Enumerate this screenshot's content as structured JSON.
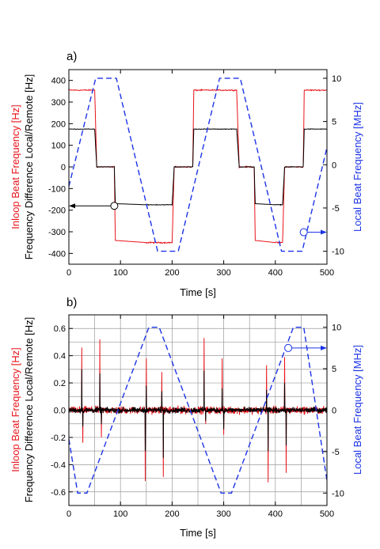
{
  "colors": {
    "red": "#e8141b",
    "black": "#000000",
    "blue": "#1c34e6",
    "grid": "#9a9a9a"
  },
  "chart_data": [
    {
      "panel_label": "a)",
      "type": "line",
      "xlabel": "Time [s]",
      "ylabel_left_a": "Inloop Beat Frequency [Hz]",
      "ylabel_left_b": "Frequency Difference Local/Remote [Hz]",
      "ylabel_right": "Local Beat Frequency [MHz]",
      "xlim": [
        0,
        500
      ],
      "ylim_left": [
        -450,
        450
      ],
      "ylim_right": [
        -11.5,
        11
      ],
      "x_ticks": [
        "0",
        "100",
        "200",
        "300",
        "400",
        "500"
      ],
      "y_ticks_left": [
        "-400",
        "-300",
        "-200",
        "-100",
        "0",
        "100",
        "200",
        "300",
        "400"
      ],
      "y_ticks_right": [
        "-10",
        "-5",
        "0",
        "5",
        "10"
      ],
      "grid": false,
      "series": [
        {
          "color": "red",
          "axis": "left",
          "x": [
            0,
            50,
            54,
            56,
            88,
            90,
            150,
            154,
            158,
            165,
            170,
            200,
            204,
            206,
            240,
            242,
            290,
            294,
            298,
            325,
            330,
            355,
            359,
            361,
            400,
            405,
            410,
            414,
            418,
            450,
            454,
            456,
            500
          ],
          "y": [
            355,
            355,
            0,
            0,
            0,
            -340,
            -350,
            -350,
            -350,
            -350,
            -350,
            -350,
            0,
            0,
            0,
            355,
            355,
            355,
            355,
            355,
            0,
            0,
            0,
            -340,
            -350,
            -350,
            -350,
            -350,
            0,
            0,
            0,
            355,
            355
          ]
        },
        {
          "color": "black",
          "axis": "left",
          "x": [
            0,
            50,
            54,
            56,
            88,
            90,
            150,
            154,
            158,
            165,
            170,
            200,
            204,
            206,
            240,
            242,
            290,
            294,
            298,
            325,
            330,
            355,
            359,
            361,
            400,
            405,
            410,
            414,
            418,
            450,
            454,
            456,
            500
          ],
          "y": [
            175,
            175,
            0,
            0,
            0,
            -170,
            -175,
            -175,
            -175,
            -175,
            -175,
            -175,
            0,
            0,
            0,
            175,
            175,
            175,
            175,
            175,
            0,
            0,
            0,
            -170,
            -175,
            -175,
            -175,
            -175,
            0,
            0,
            0,
            175,
            175
          ]
        },
        {
          "color": "blue",
          "axis": "right",
          "dashed": true,
          "x": [
            0,
            52,
            92,
            172,
            212,
            292,
            332,
            412,
            452,
            500
          ],
          "y": [
            -2.5,
            10,
            10,
            -10,
            -10,
            10,
            10,
            -10,
            -10,
            2
          ]
        }
      ],
      "annotations": [
        {
          "marker_at": [
            88,
            -180
          ],
          "arrow_to_x": 0,
          "axis": "left",
          "color": "black"
        },
        {
          "marker_at": [
            455,
            -7.8
          ],
          "arrow_to_x": 500,
          "axis": "right",
          "color": "blue"
        }
      ]
    },
    {
      "panel_label": "b)",
      "type": "line",
      "xlabel": "Time [s]",
      "ylabel_left_a": "Inloop Beat Frequency [Hz]",
      "ylabel_left_b": "Frequency Difference Local/Remote [Hz]",
      "ylabel_right": "Local Beat Frequency [MHz]",
      "xlim": [
        0,
        500
      ],
      "ylim_left": [
        -0.7,
        0.7
      ],
      "ylim_right": [
        -11.5,
        11.5
      ],
      "x_ticks": [
        "0",
        "100",
        "200",
        "300",
        "400",
        "500"
      ],
      "y_ticks_left": [
        "-0.6",
        "-0.4",
        "-0.2",
        "0.0",
        "0.2",
        "0.4",
        "0.6"
      ],
      "y_ticks_right": [
        "-10",
        "-5",
        "0",
        "5",
        "10"
      ],
      "grid": true,
      "series": [
        {
          "color": "red",
          "axis": "left",
          "noise": 0.04,
          "spikes_x": [
            25,
            27,
            60,
            63,
            148,
            150,
            180,
            183,
            262,
            265,
            297,
            300,
            383,
            386,
            418,
            421
          ],
          "spikes_y": [
            0.46,
            -0.24,
            0.52,
            -0.2,
            -0.52,
            0.38,
            0.28,
            -0.49,
            0.53,
            -0.1,
            0.38,
            -0.18,
            0.33,
            -0.53,
            0.39,
            -0.46
          ]
        },
        {
          "color": "black",
          "axis": "left",
          "noise": 0.03,
          "spikes_x": [
            25,
            27,
            60,
            63,
            148,
            150,
            180,
            183,
            262,
            265,
            297,
            300,
            383,
            386,
            418,
            421
          ],
          "spikes_y": [
            0.3,
            -0.12,
            0.27,
            -0.1,
            -0.3,
            0.18,
            0.14,
            -0.35,
            0.29,
            -0.08,
            0.16,
            -0.14,
            0.15,
            -0.3,
            0.2,
            -0.26
          ]
        },
        {
          "color": "blue",
          "axis": "right",
          "dashed": true,
          "x": [
            0,
            17,
            35,
            155,
            175,
            295,
            315,
            435,
            455,
            500
          ],
          "y": [
            -3.5,
            -10,
            -10,
            10,
            10,
            -10,
            -10,
            10,
            10,
            -8.5
          ]
        }
      ],
      "annotations": [
        {
          "marker_at": [
            425,
            7.5
          ],
          "arrow_to_x": 500,
          "axis": "right",
          "color": "blue"
        }
      ]
    }
  ]
}
